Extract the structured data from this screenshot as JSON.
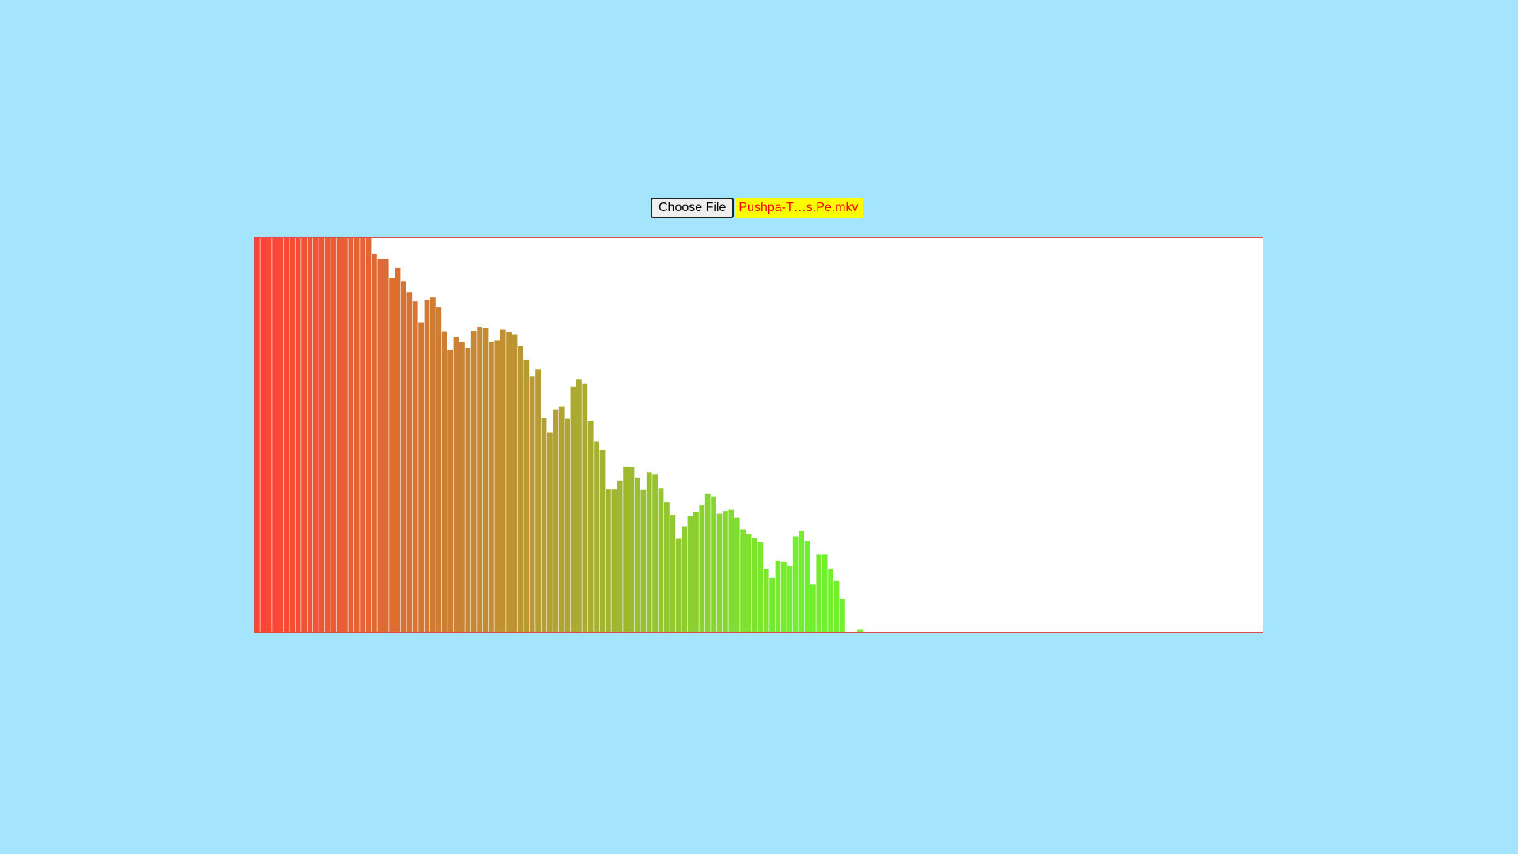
{
  "file_input": {
    "button_label": "Choose File",
    "file_name": "Pushpa-T…s.Pe.mkv"
  },
  "colors": {
    "page_background": "#a4e4fd",
    "canvas_background": "#ffffff",
    "canvas_border": "#e04a4a",
    "filename_background": "#ffff00",
    "filename_text": "#ff0000",
    "bar_low_freq": "#ff4236",
    "bar_high_freq": "#72f02e"
  },
  "chart_data": {
    "type": "bar",
    "description_of_values": "audio frequency spectrum magnitudes, normalized 0..1",
    "ylim": [
      0,
      1
    ],
    "bins": 128,
    "values": [
      1.0,
      1.0,
      1.0,
      1.0,
      1.0,
      1.0,
      1.0,
      1.0,
      1.0,
      1.0,
      1.0,
      1.0,
      1.0,
      1.0,
      1.0,
      1.0,
      1.0,
      1.0,
      1.0,
      1.0,
      0.96,
      0.947,
      0.947,
      0.899,
      0.924,
      0.891,
      0.863,
      0.839,
      0.786,
      0.842,
      0.849,
      0.825,
      0.762,
      0.717,
      0.749,
      0.737,
      0.721,
      0.765,
      0.775,
      0.771,
      0.737,
      0.74,
      0.768,
      0.761,
      0.754,
      0.725,
      0.691,
      0.648,
      0.666,
      0.544,
      0.507,
      0.565,
      0.571,
      0.541,
      0.623,
      0.642,
      0.631,
      0.536,
      0.483,
      0.462,
      0.361,
      0.361,
      0.384,
      0.42,
      0.418,
      0.392,
      0.36,
      0.405,
      0.399,
      0.365,
      0.329,
      0.297,
      0.236,
      0.268,
      0.295,
      0.304,
      0.321,
      0.35,
      0.344,
      0.3,
      0.307,
      0.31,
      0.29,
      0.26,
      0.249,
      0.237,
      0.227,
      0.16,
      0.137,
      0.18,
      0.177,
      0.167,
      0.242,
      0.256,
      0.231,
      0.12,
      0.196,
      0.196,
      0.159,
      0.129,
      0.084,
      0.0,
      0.0,
      0.005,
      0.0,
      0.0,
      0.0,
      0.0,
      0.0,
      0.0,
      0.0,
      0.0,
      0.0,
      0.0,
      0.0,
      0.0,
      0.0,
      0.0,
      0.0,
      0.0,
      0.0,
      0.0,
      0.0,
      0.0,
      0.0,
      0.0,
      0.0,
      0.0
    ]
  }
}
